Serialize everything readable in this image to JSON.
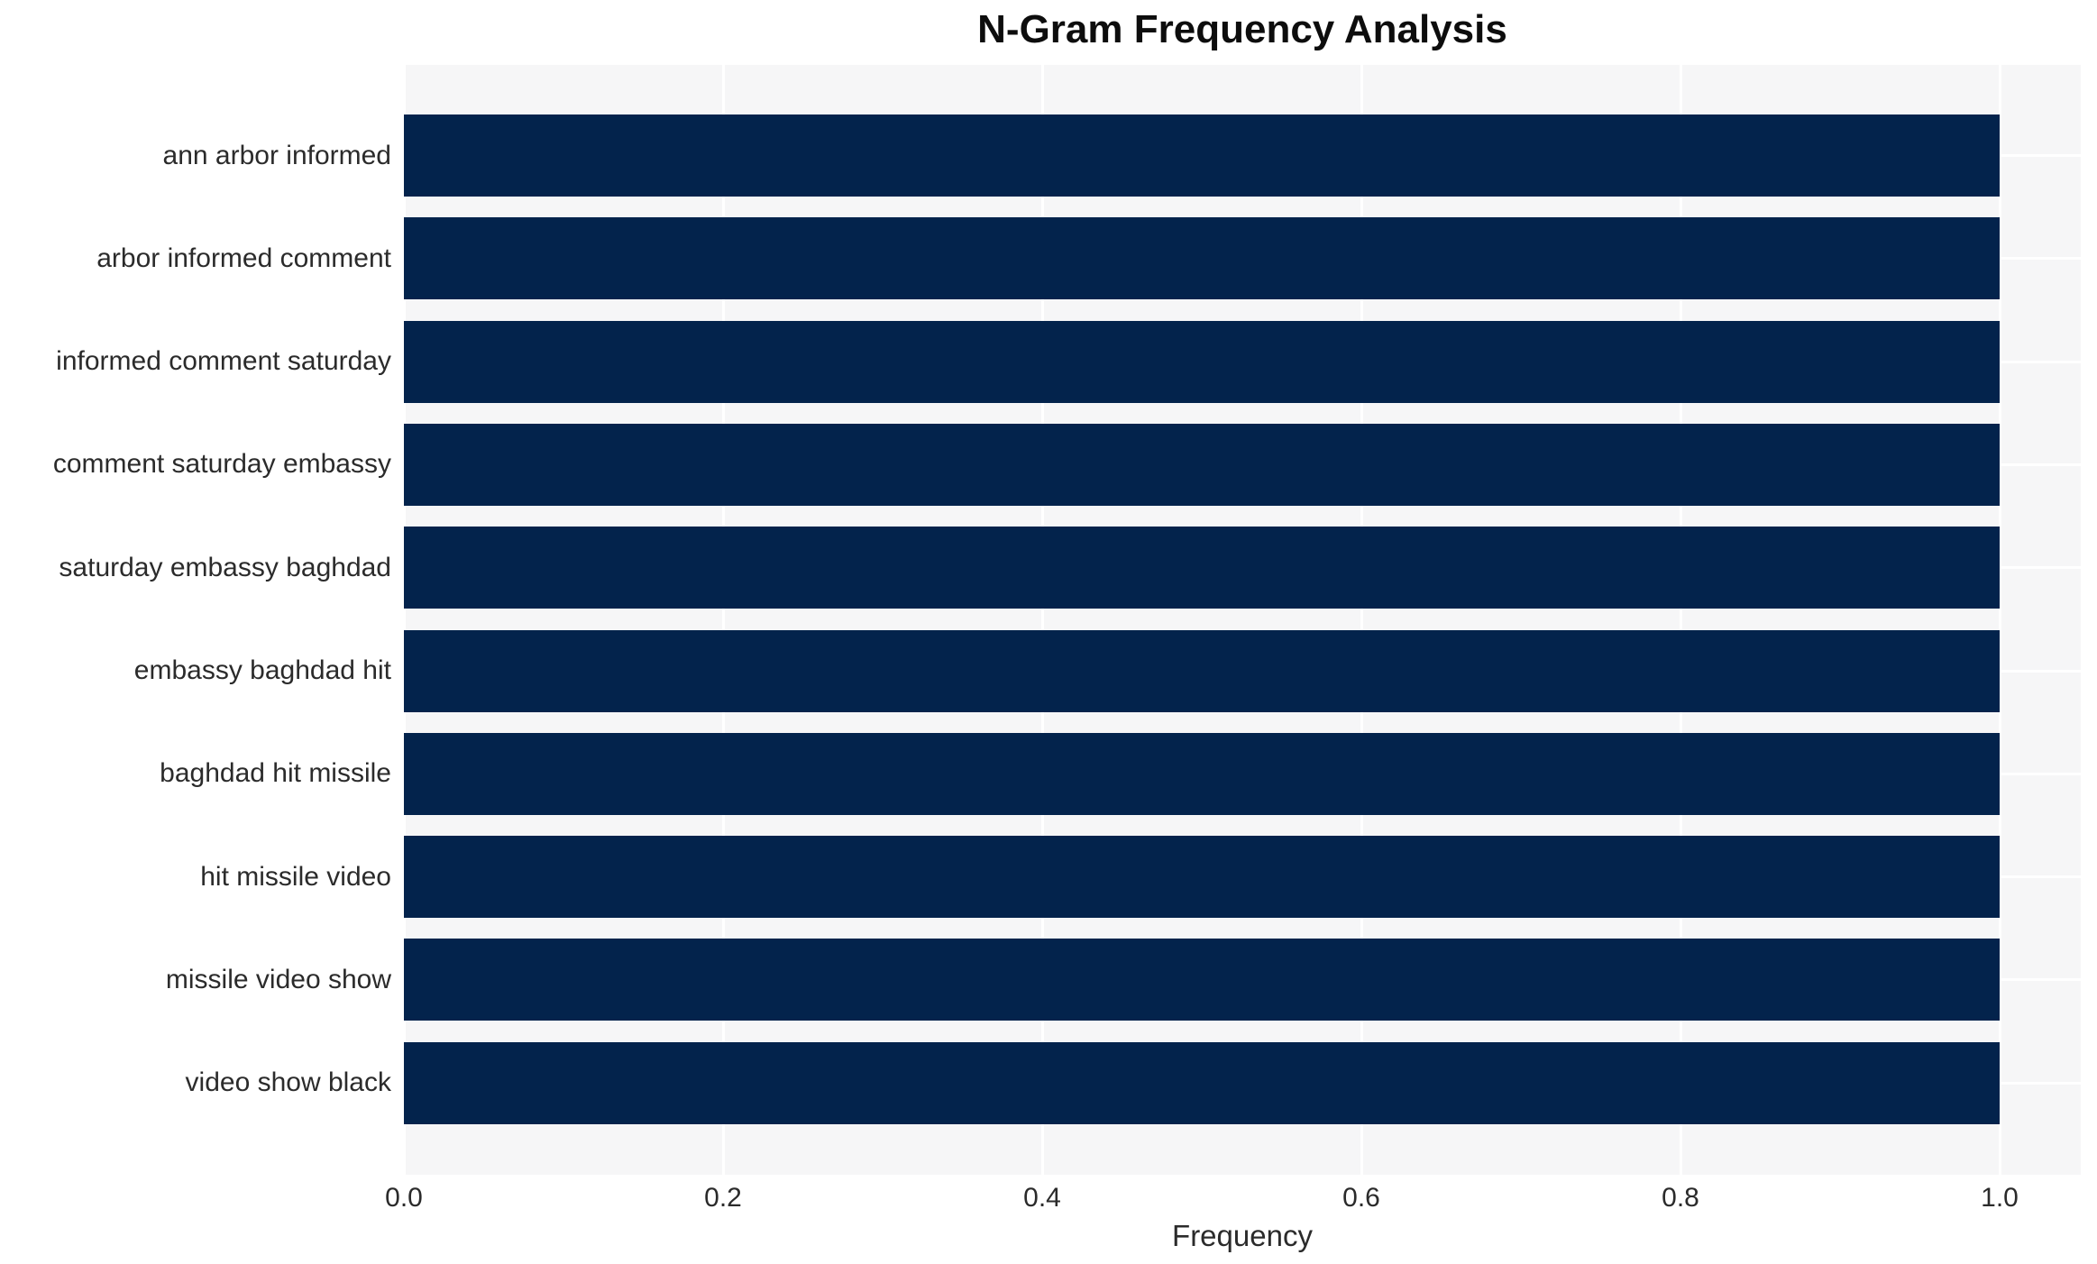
{
  "chart_data": {
    "type": "bar",
    "orientation": "horizontal",
    "title": "N-Gram Frequency Analysis",
    "xlabel": "Frequency",
    "ylabel": "",
    "categories": [
      "ann arbor informed",
      "arbor informed comment",
      "informed comment saturday",
      "comment saturday embassy",
      "saturday embassy baghdad",
      "embassy baghdad hit",
      "baghdad hit missile",
      "hit missile video",
      "missile video show",
      "video show black"
    ],
    "values": [
      1.0,
      1.0,
      1.0,
      1.0,
      1.0,
      1.0,
      1.0,
      1.0,
      1.0,
      1.0
    ],
    "xticks": [
      "0.0",
      "0.2",
      "0.4",
      "0.6",
      "0.8",
      "1.0"
    ],
    "xlim": [
      0,
      1.05
    ],
    "grid": true,
    "legend": false,
    "colors": {
      "bar": "#03234c",
      "plot_background": "#f6f6f7",
      "grid_line": "#ffffff",
      "title_text": "#0d0d0d",
      "axis_text": "#2b2b2b"
    }
  }
}
